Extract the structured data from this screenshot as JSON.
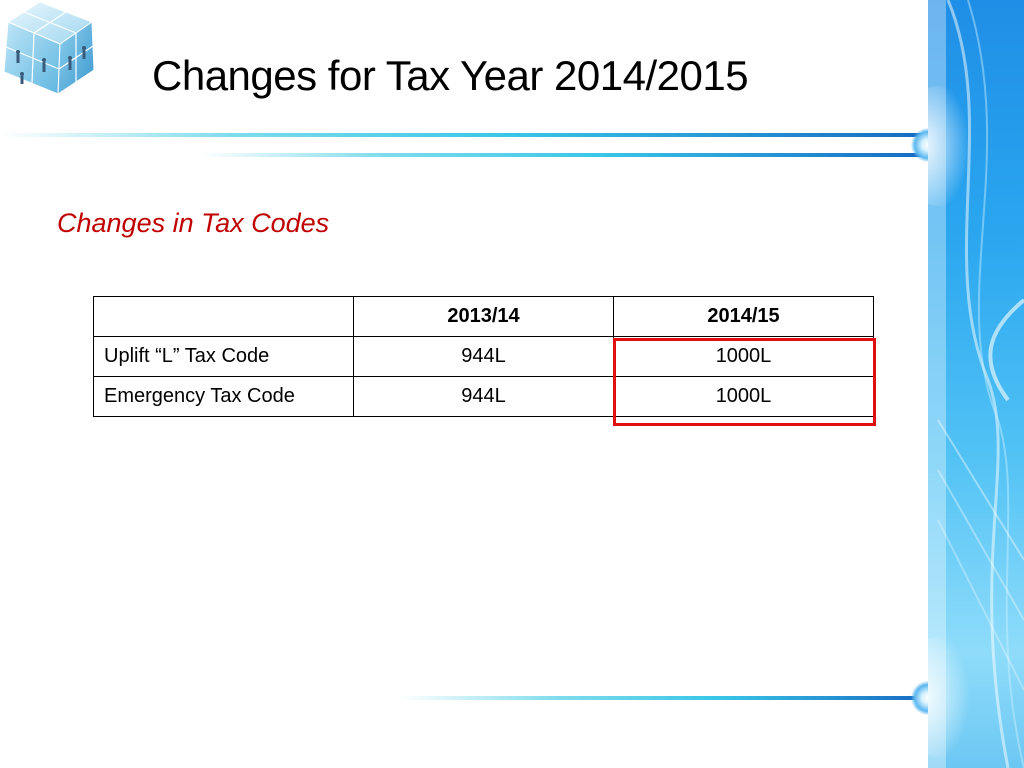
{
  "slide": {
    "title": "Changes for Tax Year 2014/2015",
    "subtitle": "Changes in Tax Codes"
  },
  "table": {
    "headers": [
      "",
      "2013/14",
      "2014/15"
    ],
    "rows": [
      {
        "label": "Uplift “L” Tax Code",
        "y2013": "944L",
        "y2014": "1000L"
      },
      {
        "label": "Emergency Tax Code",
        "y2013": "944L",
        "y2014": "1000L"
      }
    ]
  },
  "colors": {
    "title": "#000000",
    "subtitle": "#c00000",
    "highlight": "#e01010",
    "accent_blue": "#1f8ee6"
  },
  "icons": {
    "logo": "cube-people-logo-icon"
  }
}
